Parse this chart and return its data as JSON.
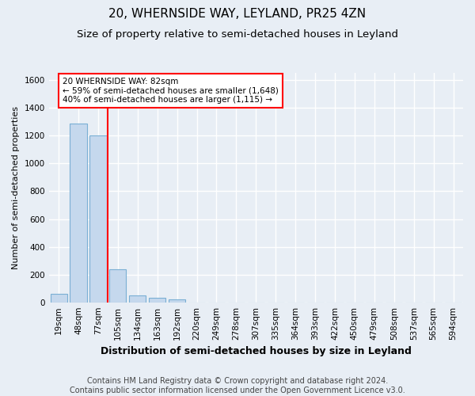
{
  "title1": "20, WHERNSIDE WAY, LEYLAND, PR25 4ZN",
  "title2": "Size of property relative to semi-detached houses in Leyland",
  "xlabel": "Distribution of semi-detached houses by size in Leyland",
  "ylabel": "Number of semi-detached properties",
  "footnote": "Contains HM Land Registry data © Crown copyright and database right 2024.\nContains public sector information licensed under the Open Government Licence v3.0.",
  "bar_labels": [
    "19sqm",
    "48sqm",
    "77sqm",
    "105sqm",
    "134sqm",
    "163sqm",
    "192sqm",
    "220sqm",
    "249sqm",
    "278sqm",
    "307sqm",
    "335sqm",
    "364sqm",
    "393sqm",
    "422sqm",
    "450sqm",
    "479sqm",
    "508sqm",
    "537sqm",
    "565sqm",
    "594sqm"
  ],
  "bar_values": [
    60,
    1290,
    1200,
    235,
    48,
    32,
    22,
    0,
    0,
    0,
    0,
    0,
    0,
    0,
    0,
    0,
    0,
    0,
    0,
    0,
    0
  ],
  "bar_color": "#c5d8ed",
  "bar_edgecolor": "#7aafd4",
  "property_line_x": 2.5,
  "annotation_text": "20 WHERNSIDE WAY: 82sqm\n← 59% of semi-detached houses are smaller (1,648)\n40% of semi-detached houses are larger (1,115) →",
  "annotation_box_color": "white",
  "annotation_box_edgecolor": "red",
  "line_color": "red",
  "ylim": [
    0,
    1650
  ],
  "yticks": [
    0,
    200,
    400,
    600,
    800,
    1000,
    1200,
    1400,
    1600
  ],
  "background_color": "#e8eef5",
  "grid_color": "white",
  "title1_fontsize": 11,
  "title2_fontsize": 9.5,
  "xlabel_fontsize": 9,
  "ylabel_fontsize": 8,
  "tick_fontsize": 7.5,
  "annotation_fontsize": 7.5,
  "footnote_fontsize": 7
}
